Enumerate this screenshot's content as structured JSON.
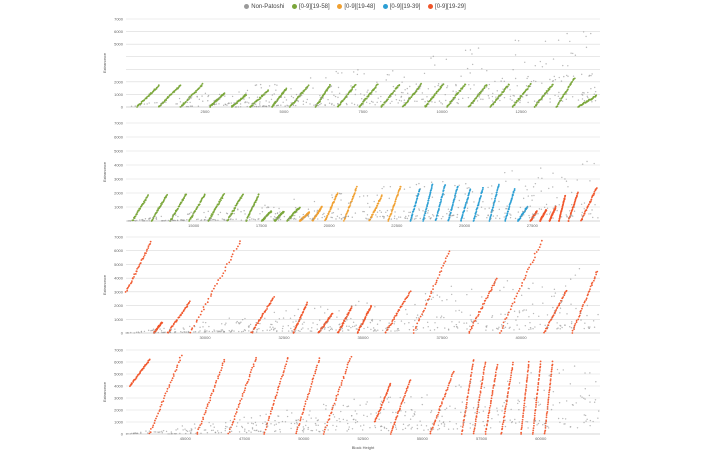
{
  "chart_data": {
    "type": "scatter",
    "legend": {
      "placement": "top-center",
      "entries": [
        {
          "name": "Non-Patoshi",
          "color": "#9a9a9a"
        },
        {
          "name": "[0-9][19-58]",
          "color": "#7aa63a"
        },
        {
          "name": "[0-9][19-48]",
          "color": "#f0a030"
        },
        {
          "name": "[0-9][19-39]",
          "color": "#2c9fd4"
        },
        {
          "name": "[0-9][19-29]",
          "color": "#f0552a"
        }
      ]
    },
    "xlabel": "Block Height",
    "ylabel": "Extranonce",
    "grid": true,
    "panels": [
      {
        "name": "panel-1",
        "xlim": [
          0,
          13000
        ],
        "ylim": [
          0,
          7000
        ],
        "xticks": [
          "2500",
          "5000",
          "7500",
          "10000",
          "12500"
        ],
        "yticks": [
          "0",
          "1000",
          "2000",
          "3000",
          "4000",
          "5000",
          "6000",
          "7000"
        ],
        "ytick_labels": [
          "0",
          "1000",
          "2000",
          "",
          "",
          "5000",
          "6000",
          "7000"
        ],
        "segments": [
          {
            "x0": 300,
            "x1": 900,
            "y0": 0,
            "y1": 1700,
            "series": "[0-9][19-58]"
          },
          {
            "x0": 900,
            "x1": 1500,
            "y0": 0,
            "y1": 1750,
            "series": "[0-9][19-58]"
          },
          {
            "x0": 1500,
            "x1": 2100,
            "y0": 0,
            "y1": 1800,
            "series": "[0-9][19-58]"
          },
          {
            "x0": 2300,
            "x1": 2700,
            "y0": 0,
            "y1": 1100,
            "series": "[0-9][19-58]"
          },
          {
            "x0": 2900,
            "x1": 3300,
            "y0": 0,
            "y1": 1000,
            "series": "[0-9][19-58]"
          },
          {
            "x0": 3400,
            "x1": 3900,
            "y0": 0,
            "y1": 1300,
            "series": "[0-9][19-58]"
          },
          {
            "x0": 4000,
            "x1": 4400,
            "y0": 0,
            "y1": 1500,
            "series": "[0-9][19-58]"
          },
          {
            "x0": 4500,
            "x1": 5000,
            "y0": 0,
            "y1": 1700,
            "series": "[0-9][19-58]"
          },
          {
            "x0": 5200,
            "x1": 5600,
            "y0": 0,
            "y1": 1750,
            "series": "[0-9][19-58]"
          },
          {
            "x0": 5800,
            "x1": 6300,
            "y0": 0,
            "y1": 1800,
            "series": "[0-9][19-58]"
          },
          {
            "x0": 6400,
            "x1": 6900,
            "y0": 0,
            "y1": 1800,
            "series": "[0-9][19-58]"
          },
          {
            "x0": 7000,
            "x1": 7500,
            "y0": 0,
            "y1": 1800,
            "series": "[0-9][19-58]"
          },
          {
            "x0": 7600,
            "x1": 8100,
            "y0": 0,
            "y1": 1800,
            "series": "[0-9][19-58]"
          },
          {
            "x0": 8200,
            "x1": 8700,
            "y0": 0,
            "y1": 1800,
            "series": "[0-9][19-58]"
          },
          {
            "x0": 8800,
            "x1": 9300,
            "y0": 0,
            "y1": 1800,
            "series": "[0-9][19-58]"
          },
          {
            "x0": 9400,
            "x1": 9900,
            "y0": 0,
            "y1": 1800,
            "series": "[0-9][19-58]"
          },
          {
            "x0": 10000,
            "x1": 10500,
            "y0": 0,
            "y1": 1800,
            "series": "[0-9][19-58]"
          },
          {
            "x0": 10600,
            "x1": 11100,
            "y0": 0,
            "y1": 1800,
            "series": "[0-9][19-58]"
          },
          {
            "x0": 11200,
            "x1": 11700,
            "y0": 0,
            "y1": 1800,
            "series": "[0-9][19-58]"
          },
          {
            "x0": 11800,
            "x1": 12300,
            "y0": 0,
            "y1": 2300,
            "series": "[0-9][19-58]"
          },
          {
            "x0": 12400,
            "x1": 12900,
            "y0": 0,
            "y1": 900,
            "series": "[0-9][19-58]"
          },
          {
            "x0": 0,
            "x1": 13000,
            "y0": 0,
            "y1": 6500,
            "series": "Non-Patoshi"
          },
          {
            "x0": 1500,
            "x1": 13000,
            "y0": 0,
            "y1": 3000,
            "series": "Non-Patoshi"
          },
          {
            "x0": 3000,
            "x1": 13000,
            "y0": 0,
            "y1": 1200,
            "series": "Non-Patoshi"
          }
        ]
      },
      {
        "name": "panel-2",
        "xlim": [
          13000,
          28000
        ],
        "ylim": [
          0,
          7000
        ],
        "xticks": [
          "15000",
          "17500",
          "20000",
          "22500",
          "25000",
          "27500"
        ],
        "yticks": [
          "0",
          "1000",
          "2000",
          "3000",
          "4000",
          "5000",
          "6000",
          "7000"
        ],
        "ytick_labels": [
          "",
          "1000",
          "2000",
          "3000",
          "4000",
          "5000",
          "6000",
          "7000"
        ],
        "segments": [
          {
            "x0": 13200,
            "x1": 13700,
            "y0": 0,
            "y1": 1800,
            "series": "[0-9][19-58]"
          },
          {
            "x0": 13800,
            "x1": 14300,
            "y0": 0,
            "y1": 1900,
            "series": "[0-9][19-58]"
          },
          {
            "x0": 14400,
            "x1": 14900,
            "y0": 0,
            "y1": 1900,
            "series": "[0-9][19-58]"
          },
          {
            "x0": 15000,
            "x1": 15500,
            "y0": 0,
            "y1": 1900,
            "series": "[0-9][19-58]"
          },
          {
            "x0": 15600,
            "x1": 16100,
            "y0": 0,
            "y1": 1900,
            "series": "[0-9][19-58]"
          },
          {
            "x0": 16200,
            "x1": 16700,
            "y0": 0,
            "y1": 1900,
            "series": "[0-9][19-58]"
          },
          {
            "x0": 16800,
            "x1": 17200,
            "y0": 0,
            "y1": 1900,
            "series": "[0-9][19-58]"
          },
          {
            "x0": 17300,
            "x1": 17600,
            "y0": 0,
            "y1": 700,
            "series": "[0-9][19-58]"
          },
          {
            "x0": 17700,
            "x1": 18000,
            "y0": 0,
            "y1": 700,
            "series": "[0-9][19-58]"
          },
          {
            "x0": 18100,
            "x1": 18500,
            "y0": 0,
            "y1": 1000,
            "series": "[0-9][19-58]"
          },
          {
            "x0": 18500,
            "x1": 18800,
            "y0": 0,
            "y1": 600,
            "series": "[0-9][19-48]"
          },
          {
            "x0": 18900,
            "x1": 19200,
            "y0": 0,
            "y1": 1000,
            "series": "[0-9][19-48]"
          },
          {
            "x0": 19300,
            "x1": 19700,
            "y0": 0,
            "y1": 2000,
            "series": "[0-9][19-48]"
          },
          {
            "x0": 19900,
            "x1": 20300,
            "y0": 0,
            "y1": 2400,
            "series": "[0-9][19-48]"
          },
          {
            "x0": 20700,
            "x1": 21100,
            "y0": 0,
            "y1": 1800,
            "series": "[0-9][19-48]"
          },
          {
            "x0": 21300,
            "x1": 21700,
            "y0": 0,
            "y1": 2500,
            "series": "[0-9][19-48]"
          },
          {
            "x0": 22000,
            "x1": 22300,
            "y0": 0,
            "y1": 2300,
            "series": "[0-9][19-39]"
          },
          {
            "x0": 22400,
            "x1": 22700,
            "y0": 0,
            "y1": 2600,
            "series": "[0-9][19-39]"
          },
          {
            "x0": 22800,
            "x1": 23100,
            "y0": 0,
            "y1": 2600,
            "series": "[0-9][19-39]"
          },
          {
            "x0": 23200,
            "x1": 23500,
            "y0": 0,
            "y1": 2500,
            "series": "[0-9][19-39]"
          },
          {
            "x0": 23600,
            "x1": 23900,
            "y0": 0,
            "y1": 2300,
            "series": "[0-9][19-39]"
          },
          {
            "x0": 24000,
            "x1": 24300,
            "y0": 0,
            "y1": 2400,
            "series": "[0-9][19-39]"
          },
          {
            "x0": 24500,
            "x1": 24800,
            "y0": 0,
            "y1": 2600,
            "series": "[0-9][19-39]"
          },
          {
            "x0": 25000,
            "x1": 25300,
            "y0": 0,
            "y1": 2300,
            "series": "[0-9][19-39]"
          },
          {
            "x0": 25400,
            "x1": 25700,
            "y0": 0,
            "y1": 1000,
            "series": "[0-9][19-39]"
          },
          {
            "x0": 25800,
            "x1": 26000,
            "y0": 0,
            "y1": 700,
            "series": "[0-9][19-29]"
          },
          {
            "x0": 26100,
            "x1": 26300,
            "y0": 0,
            "y1": 800,
            "series": "[0-9][19-29]"
          },
          {
            "x0": 26400,
            "x1": 26600,
            "y0": 0,
            "y1": 1000,
            "series": "[0-9][19-29]"
          },
          {
            "x0": 26700,
            "x1": 26900,
            "y0": 0,
            "y1": 1800,
            "series": "[0-9][19-29]"
          },
          {
            "x0": 27000,
            "x1": 27300,
            "y0": 0,
            "y1": 2000,
            "series": "[0-9][19-29]"
          },
          {
            "x0": 27400,
            "x1": 27900,
            "y0": 0,
            "y1": 2400,
            "series": "[0-9][19-29]"
          },
          {
            "x0": 13000,
            "x1": 28000,
            "y0": 0,
            "y1": 4500,
            "series": "Non-Patoshi"
          },
          {
            "x0": 14000,
            "x1": 28000,
            "y0": 0,
            "y1": 1500,
            "series": "Non-Patoshi"
          },
          {
            "x0": 13000,
            "x1": 28000,
            "y0": 0,
            "y1": 600,
            "series": "Non-Patoshi"
          }
        ]
      },
      {
        "name": "panel-3",
        "xlim": [
          28000,
          45000
        ],
        "ylim": [
          0,
          7000
        ],
        "xticks": [
          "30000",
          "32500",
          "35000",
          "37500",
          "40000"
        ],
        "yticks": [
          "0",
          "1000",
          "2000",
          "3000",
          "4000",
          "5000",
          "6000",
          "7000"
        ],
        "ytick_labels": [
          "0",
          "1000",
          "2000",
          "3000",
          "4000",
          "5000",
          "6000",
          "7000"
        ],
        "segments": [
          {
            "x0": 28000,
            "x1": 28900,
            "y0": 3000,
            "y1": 6600,
            "series": "[0-9][19-29]"
          },
          {
            "x0": 29000,
            "x1": 29300,
            "y0": 0,
            "y1": 800,
            "series": "[0-9][19-29]"
          },
          {
            "x0": 29500,
            "x1": 30300,
            "y0": 0,
            "y1": 2300,
            "series": "[0-9][19-29]"
          },
          {
            "x0": 30300,
            "x1": 32100,
            "y0": 0,
            "y1": 6700,
            "series": "[0-9][19-29]"
          },
          {
            "x0": 32500,
            "x1": 33300,
            "y0": 0,
            "y1": 2600,
            "series": "[0-9][19-29]"
          },
          {
            "x0": 34000,
            "x1": 34500,
            "y0": 0,
            "y1": 2200,
            "series": "[0-9][19-29]"
          },
          {
            "x0": 34900,
            "x1": 35400,
            "y0": 0,
            "y1": 1400,
            "series": "[0-9][19-29]"
          },
          {
            "x0": 35600,
            "x1": 36100,
            "y0": 0,
            "y1": 1900,
            "series": "[0-9][19-29]"
          },
          {
            "x0": 36300,
            "x1": 36800,
            "y0": 0,
            "y1": 2000,
            "series": "[0-9][19-29]"
          },
          {
            "x0": 37300,
            "x1": 38200,
            "y0": 0,
            "y1": 3000,
            "series": "[0-9][19-29]"
          },
          {
            "x0": 38300,
            "x1": 39600,
            "y0": 0,
            "y1": 5900,
            "series": "[0-9][19-29]"
          },
          {
            "x0": 40300,
            "x1": 41300,
            "y0": 0,
            "y1": 4000,
            "series": "[0-9][19-29]"
          },
          {
            "x0": 41400,
            "x1": 42900,
            "y0": 0,
            "y1": 6700,
            "series": "[0-9][19-29]"
          },
          {
            "x0": 43000,
            "x1": 43800,
            "y0": 0,
            "y1": 3100,
            "series": "[0-9][19-29]"
          },
          {
            "x0": 44000,
            "x1": 44900,
            "y0": 0,
            "y1": 4500,
            "series": "[0-9][19-29]"
          },
          {
            "x0": 28000,
            "x1": 45000,
            "y0": 0,
            "y1": 5000,
            "series": "Non-Patoshi"
          },
          {
            "x0": 29000,
            "x1": 45000,
            "y0": 0,
            "y1": 2000,
            "series": "Non-Patoshi"
          },
          {
            "x0": 28000,
            "x1": 45000,
            "y0": 0,
            "y1": 700,
            "series": "Non-Patoshi"
          }
        ]
      },
      {
        "name": "panel-4",
        "xlim": [
          45000,
          57000
        ],
        "ylim": [
          0,
          7000
        ],
        "xticks": [
          "45000",
          "47500",
          "50000",
          "52500",
          "55000",
          "57500",
          "60000"
        ],
        "yticks": [
          "0",
          "1000",
          "2000",
          "3000",
          "4000",
          "5000",
          "6000",
          "7000"
        ],
        "ytick_labels": [
          "0",
          "1000",
          "2000",
          "3000",
          "4000",
          "5000",
          "6000",
          "7000"
        ],
        "segments": [
          {
            "x0": 45100,
            "x1": 45600,
            "y0": 4000,
            "y1": 6200,
            "series": "[0-9][19-29]"
          },
          {
            "x0": 45600,
            "x1": 46400,
            "y0": 0,
            "y1": 6500,
            "series": "[0-9][19-29]"
          },
          {
            "x0": 46800,
            "x1": 47500,
            "y0": 0,
            "y1": 6200,
            "series": "[0-9][19-29]"
          },
          {
            "x0": 47600,
            "x1": 48300,
            "y0": 0,
            "y1": 6400,
            "series": "[0-9][19-29]"
          },
          {
            "x0": 48500,
            "x1": 49100,
            "y0": 0,
            "y1": 6400,
            "series": "[0-9][19-29]"
          },
          {
            "x0": 49300,
            "x1": 49900,
            "y0": 0,
            "y1": 6300,
            "series": "[0-9][19-29]"
          },
          {
            "x0": 50000,
            "x1": 50700,
            "y0": 0,
            "y1": 6500,
            "series": "[0-9][19-29]"
          },
          {
            "x0": 51300,
            "x1": 51700,
            "y0": 1000,
            "y1": 4200,
            "series": "[0-9][19-29]"
          },
          {
            "x0": 51700,
            "x1": 52200,
            "y0": 0,
            "y1": 4500,
            "series": "[0-9][19-29]"
          },
          {
            "x0": 52700,
            "x1": 53300,
            "y0": 0,
            "y1": 5200,
            "series": "[0-9][19-29]"
          },
          {
            "x0": 53500,
            "x1": 53800,
            "y0": 0,
            "y1": 6200,
            "series": "[0-9][19-29]"
          },
          {
            "x0": 53800,
            "x1": 54100,
            "y0": 0,
            "y1": 6000,
            "series": "[0-9][19-29]"
          },
          {
            "x0": 54100,
            "x1": 54400,
            "y0": 0,
            "y1": 5800,
            "series": "[0-9][19-29]"
          },
          {
            "x0": 54500,
            "x1": 54800,
            "y0": 0,
            "y1": 5900,
            "series": "[0-9][19-29]"
          },
          {
            "x0": 55000,
            "x1": 55200,
            "y0": 0,
            "y1": 6000,
            "series": "[0-9][19-29]"
          },
          {
            "x0": 55300,
            "x1": 55500,
            "y0": 0,
            "y1": 6000,
            "series": "[0-9][19-29]"
          },
          {
            "x0": 55600,
            "x1": 55800,
            "y0": 0,
            "y1": 6000,
            "series": "[0-9][19-29]"
          },
          {
            "x0": 45000,
            "x1": 57000,
            "y0": 0,
            "y1": 6000,
            "series": "Non-Patoshi"
          },
          {
            "x0": 45000,
            "x1": 57000,
            "y0": 0,
            "y1": 3500,
            "series": "Non-Patoshi"
          },
          {
            "x0": 46000,
            "x1": 57000,
            "y0": 0,
            "y1": 1500,
            "series": "Non-Patoshi"
          }
        ]
      }
    ]
  }
}
